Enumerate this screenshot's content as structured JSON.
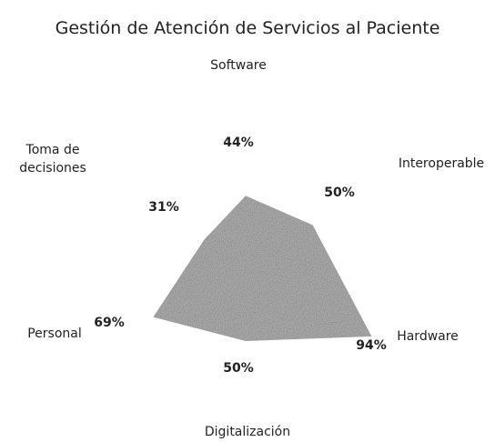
{
  "chart_data": {
    "type": "radar",
    "title": "Gestión de Atención de Servicios al Paciente",
    "categories": [
      "Software",
      "Interoperable",
      "Hardware",
      "Digitalización",
      "Personal",
      "Toma de decisiones"
    ],
    "values": [
      44,
      50,
      94,
      50,
      69,
      31
    ],
    "value_labels": [
      "44%",
      "50%",
      "94%",
      "50%",
      "69%",
      "31%"
    ],
    "color": "#b5b5b5",
    "ylim": [
      0,
      100
    ]
  }
}
